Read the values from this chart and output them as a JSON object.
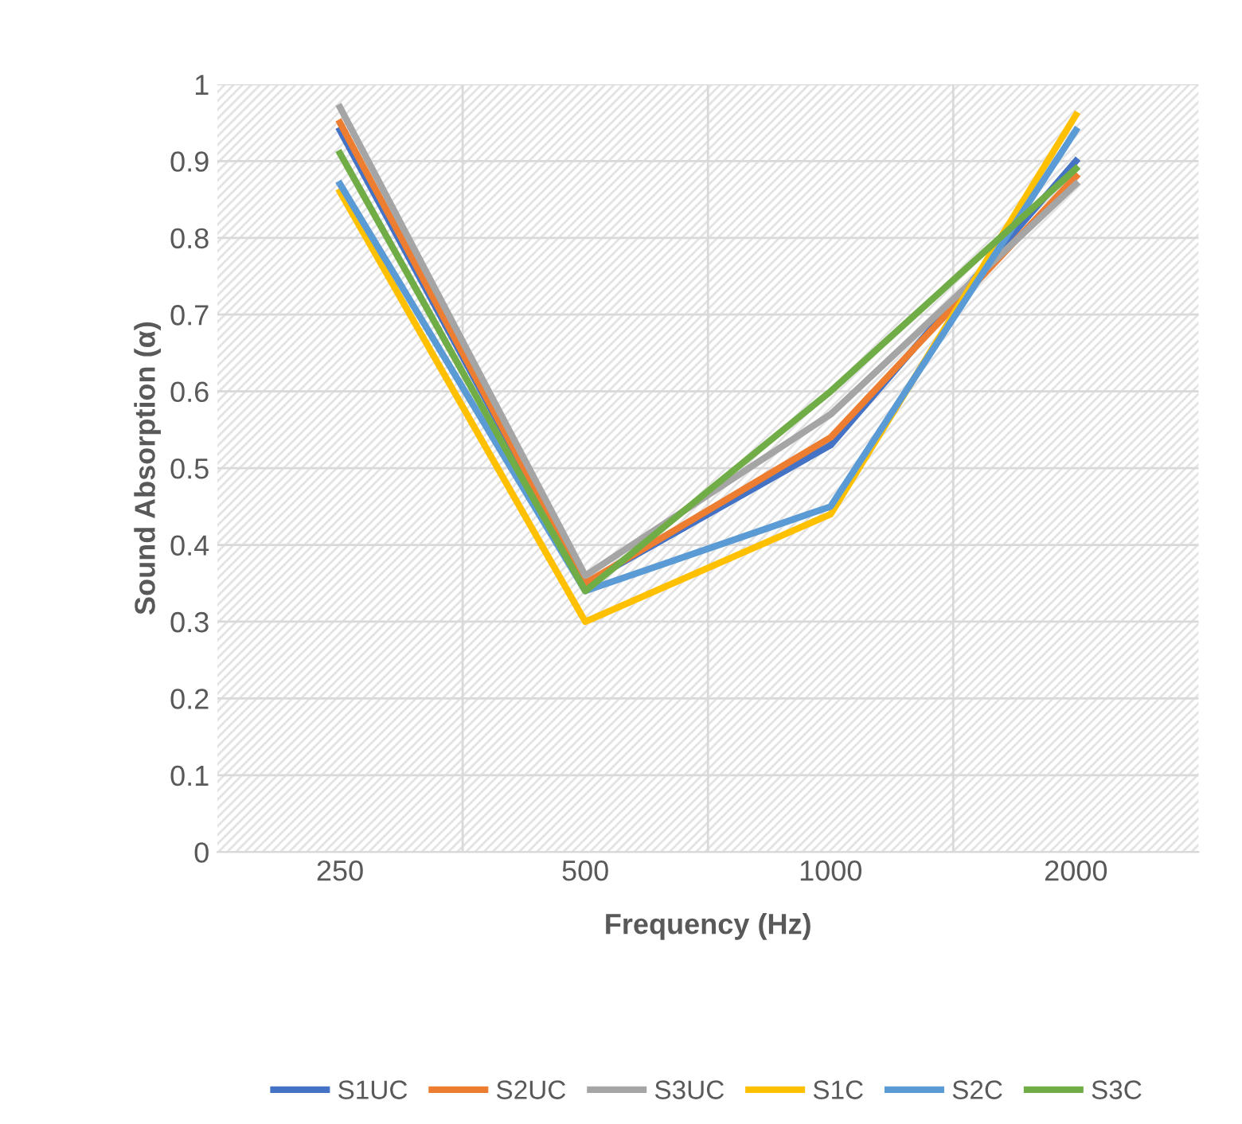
{
  "chart_data": {
    "type": "line",
    "xlabel": "Frequency (Hz)",
    "ylabel": "Sound Absorption (α)",
    "categories": [
      "250",
      "500",
      "1000",
      "2000"
    ],
    "series": [
      {
        "name": "S1UC",
        "color": "#4472c4",
        "values": [
          0.94,
          0.35,
          0.53,
          0.9
        ]
      },
      {
        "name": "S2UC",
        "color": "#ed7d31",
        "values": [
          0.95,
          0.35,
          0.54,
          0.88
        ]
      },
      {
        "name": "S3UC",
        "color": "#a5a5a5",
        "values": [
          0.97,
          0.36,
          0.57,
          0.87
        ]
      },
      {
        "name": "S1C",
        "color": "#ffc000",
        "values": [
          0.86,
          0.3,
          0.44,
          0.96
        ]
      },
      {
        "name": "S2C",
        "color": "#5b9bd5",
        "values": [
          0.87,
          0.34,
          0.45,
          0.94
        ]
      },
      {
        "name": "S3C",
        "color": "#70ad47",
        "values": [
          0.91,
          0.34,
          0.6,
          0.89
        ]
      }
    ],
    "ylim": [
      0,
      1
    ],
    "yticks": [
      0,
      0.1,
      0.2,
      0.3,
      0.4,
      0.5,
      0.6,
      0.7,
      0.8,
      0.9,
      1
    ],
    "grid": true,
    "legend": "bottom",
    "marker": "none",
    "line_style": "solid"
  }
}
